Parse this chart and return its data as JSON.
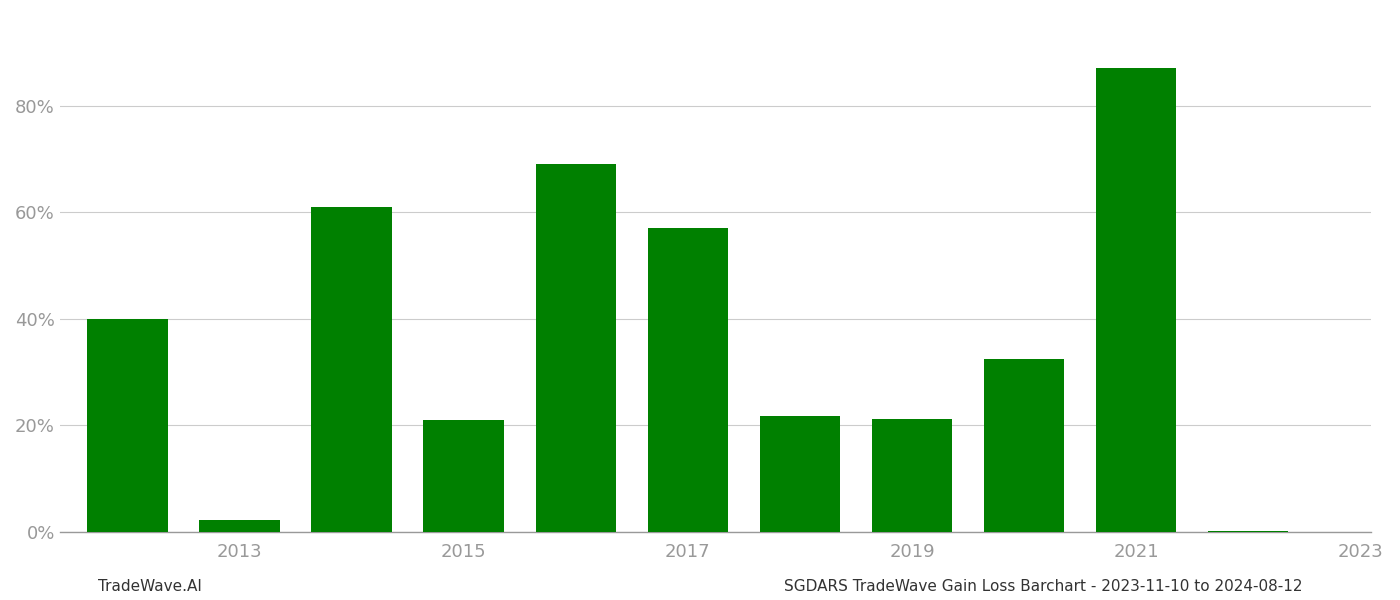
{
  "years": [
    2012,
    2013,
    2014,
    2015,
    2016,
    2017,
    2018,
    2019,
    2020,
    2021,
    2022
  ],
  "values": [
    0.4,
    0.022,
    0.61,
    0.21,
    0.69,
    0.57,
    0.218,
    0.212,
    0.325,
    0.87,
    0.002
  ],
  "bar_color": "#008000",
  "background_color": "#ffffff",
  "ylabel_color": "#999999",
  "xlabel_color": "#999999",
  "grid_color": "#cccccc",
  "axis_color": "#999999",
  "footer_left": "TradeWave.AI",
  "footer_right": "SGDARS TradeWave Gain Loss Barchart - 2023-11-10 to 2024-08-12",
  "footer_fontsize": 11,
  "tick_label_fontsize": 13,
  "ytick_labels": [
    "0%",
    "20%",
    "40%",
    "60%",
    "80%"
  ],
  "ytick_values": [
    0.0,
    0.2,
    0.4,
    0.6,
    0.8
  ],
  "xtick_positions": [
    2013,
    2015,
    2017,
    2019,
    2021,
    2023
  ],
  "xtick_labels": [
    "2013",
    "2015",
    "2017",
    "2019",
    "2021",
    "2023"
  ],
  "ylim": [
    0,
    0.97
  ],
  "xlim_left": 2011.4,
  "xlim_right": 2023.1,
  "bar_width": 0.72
}
